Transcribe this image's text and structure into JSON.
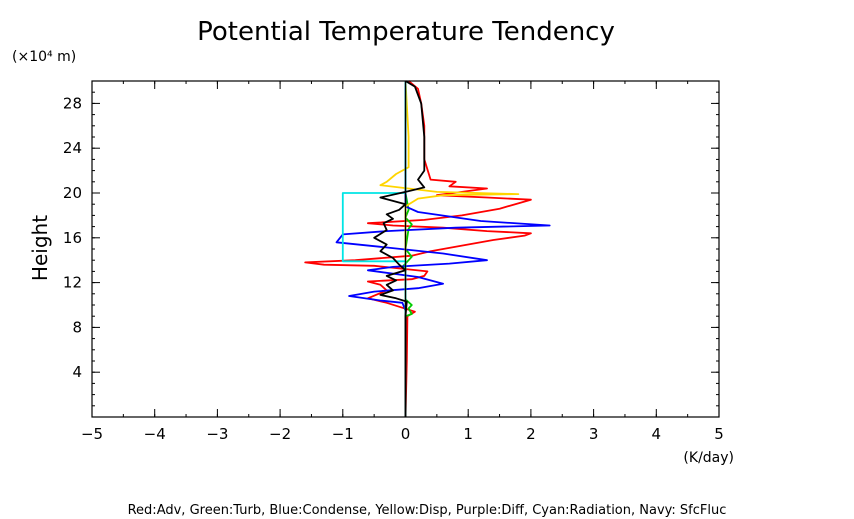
{
  "chart_data": {
    "type": "line",
    "title": "Potential Temperature Tendency",
    "ylabel": "Height",
    "y_unit": "(×10⁴ m)",
    "x_unit": "(K/day)",
    "xlim": [
      -5,
      5
    ],
    "ylim": [
      0,
      30
    ],
    "x_ticks": [
      "−5",
      "−4",
      "−3",
      "−2",
      "−1",
      "0",
      "1",
      "2",
      "3",
      "4",
      "5"
    ],
    "y_ticks": [
      "4",
      "8",
      "12",
      "16",
      "20",
      "24",
      "28"
    ],
    "footer": "Red:Adv, Green:Turb, Blue:Condense, Yellow:Disp, Purple:Diff, Cyan:Radiation, Navy: SfcFluc",
    "series": [
      {
        "color": "#ff0000",
        "points": [
          [
            0,
            0
          ],
          [
            0.02,
            5
          ],
          [
            0.03,
            9
          ],
          [
            0.15,
            9.4
          ],
          [
            -0.3,
            10.2
          ],
          [
            -0.6,
            10.6
          ],
          [
            -0.3,
            11.3
          ],
          [
            -0.4,
            11.8
          ],
          [
            -0.6,
            12.1
          ],
          [
            0.1,
            12.3
          ],
          [
            0.3,
            12.6
          ],
          [
            0.35,
            13
          ],
          [
            -0.5,
            13.5
          ],
          [
            -1.3,
            13.6
          ],
          [
            -1.6,
            13.8
          ],
          [
            -0.8,
            14
          ],
          [
            0.1,
            14.4
          ],
          [
            0.4,
            14.8
          ],
          [
            0.9,
            15.3
          ],
          [
            1.4,
            15.8
          ],
          [
            1.9,
            16.2
          ],
          [
            2.0,
            16.4
          ],
          [
            1.3,
            16.6
          ],
          [
            0.6,
            16.9
          ],
          [
            -0.2,
            17.1
          ],
          [
            -0.6,
            17.3
          ],
          [
            0.3,
            17.6
          ],
          [
            0.9,
            18.0
          ],
          [
            1.5,
            18.6
          ],
          [
            2.0,
            19.4
          ],
          [
            1.3,
            19.6
          ],
          [
            0.5,
            19.8
          ],
          [
            0.9,
            20.1
          ],
          [
            1.3,
            20.4
          ],
          [
            0.7,
            20.6
          ],
          [
            0.8,
            21.0
          ],
          [
            0.4,
            21.2
          ],
          [
            0.3,
            23
          ],
          [
            0.3,
            26
          ],
          [
            0.25,
            28
          ],
          [
            0.2,
            29.3
          ],
          [
            0.05,
            30
          ]
        ]
      },
      {
        "color": "#00cc00",
        "points": [
          [
            0,
            0
          ],
          [
            0,
            9
          ],
          [
            0.1,
            9.2
          ],
          [
            0.05,
            9.7
          ],
          [
            0.1,
            10
          ],
          [
            0,
            10.5
          ],
          [
            0,
            13.2
          ],
          [
            -0.05,
            13.4
          ],
          [
            0.05,
            14
          ],
          [
            0.1,
            14.3
          ],
          [
            0,
            15
          ],
          [
            0.05,
            16.8
          ],
          [
            0.1,
            17.2
          ],
          [
            0,
            17.8
          ],
          [
            0.05,
            18.5
          ],
          [
            0,
            20
          ],
          [
            0,
            30
          ]
        ]
      },
      {
        "color": "#0000ff",
        "points": [
          [
            0,
            0
          ],
          [
            0,
            9.5
          ],
          [
            -0.05,
            10.2
          ],
          [
            -0.4,
            10.4
          ],
          [
            -0.9,
            10.8
          ],
          [
            -0.5,
            11.2
          ],
          [
            0.2,
            11.5
          ],
          [
            0.6,
            11.9
          ],
          [
            0.2,
            12.5
          ],
          [
            -0.6,
            13.1
          ],
          [
            -0.2,
            13.4
          ],
          [
            0.7,
            13.7
          ],
          [
            1.3,
            14.0
          ],
          [
            0.6,
            14.6
          ],
          [
            -0.4,
            15.2
          ],
          [
            -1.1,
            15.6
          ],
          [
            -1.0,
            16.3
          ],
          [
            -0.3,
            16.6
          ],
          [
            0.8,
            16.9
          ],
          [
            2.3,
            17.1
          ],
          [
            1.2,
            17.5
          ],
          [
            0.2,
            18.3
          ],
          [
            0,
            18.8
          ],
          [
            0,
            20
          ],
          [
            0,
            30
          ]
        ]
      },
      {
        "color": "#ffd500",
        "points": [
          [
            0,
            0
          ],
          [
            0,
            18.8
          ],
          [
            0.2,
            19.5
          ],
          [
            0.6,
            19.8
          ],
          [
            1.8,
            19.9
          ],
          [
            0.5,
            20.1
          ],
          [
            -0.4,
            20.7
          ],
          [
            -0.3,
            21.0
          ],
          [
            -0.15,
            21.7
          ],
          [
            0.05,
            22.3
          ],
          [
            0.05,
            25
          ],
          [
            0,
            30
          ]
        ]
      },
      {
        "color": "#00e5e5",
        "points": [
          [
            0,
            0
          ],
          [
            0,
            13.9
          ],
          [
            -1,
            13.9
          ],
          [
            -1,
            20
          ],
          [
            0,
            20
          ],
          [
            0,
            30
          ]
        ]
      },
      {
        "color": "#000000",
        "points": [
          [
            0,
            0
          ],
          [
            0,
            9
          ],
          [
            0.02,
            10.3
          ],
          [
            -0.15,
            10.6
          ],
          [
            -0.4,
            10.9
          ],
          [
            -0.2,
            11.3
          ],
          [
            -0.3,
            11.8
          ],
          [
            -0.15,
            12.2
          ],
          [
            -0.3,
            12.6
          ],
          [
            0,
            13.1
          ],
          [
            -0.1,
            13.6
          ],
          [
            -0.2,
            14.2
          ],
          [
            -0.4,
            14.8
          ],
          [
            -0.3,
            15.4
          ],
          [
            -0.5,
            16.0
          ],
          [
            -0.3,
            16.7
          ],
          [
            -0.35,
            17.3
          ],
          [
            -0.2,
            17.7
          ],
          [
            -0.3,
            18.1
          ],
          [
            -0.1,
            18.5
          ],
          [
            0,
            19.0
          ],
          [
            -0.4,
            19.6
          ],
          [
            0,
            20.1
          ],
          [
            0.3,
            20.5
          ],
          [
            0.2,
            21.2
          ],
          [
            0.3,
            22
          ],
          [
            0.3,
            25
          ],
          [
            0.25,
            28
          ],
          [
            0.15,
            29.5
          ],
          [
            0,
            30
          ]
        ]
      }
    ]
  }
}
